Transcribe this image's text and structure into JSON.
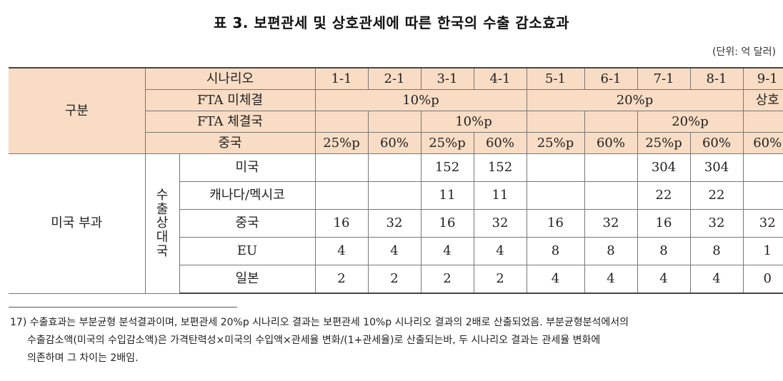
{
  "title": "표 3. 보편관세 및 상호관세에 따른 한국의 수출 감소효과",
  "unit": "(단위: 억 달러)",
  "header": {
    "category": "구분",
    "scenario_label": "시나리오",
    "scenarios": [
      "1-1",
      "2-1",
      "3-1",
      "4-1",
      "5-1",
      "6-1",
      "7-1",
      "8-1",
      "9-1"
    ],
    "fta_non_label": "FTA 미체결",
    "fta_non_values": [
      "10%p",
      "20%p",
      "상호"
    ],
    "fta_label": "FTA 체결국",
    "fta_values": [
      "10%p",
      "20%p"
    ],
    "china_label": "중국",
    "china_values": [
      "25%p",
      "60%",
      "25%p",
      "60%",
      "25%p",
      "60%",
      "25%p",
      "60%",
      "60%"
    ]
  },
  "body": {
    "group_label": "미국 부과",
    "target_label": [
      "수",
      "출",
      "상",
      "대",
      "국"
    ],
    "rows": [
      {
        "name": "미국",
        "values": [
          "",
          "",
          "152",
          "152",
          "",
          "",
          "304",
          "304",
          ""
        ]
      },
      {
        "name": "캐나다/멕시코",
        "values": [
          "",
          "",
          "11",
          "11",
          "",
          "",
          "22",
          "22",
          ""
        ]
      },
      {
        "name": "중국",
        "values": [
          "16",
          "32",
          "16",
          "32",
          "16",
          "32",
          "16",
          "32",
          "32"
        ]
      },
      {
        "name": "EU",
        "values": [
          "4",
          "4",
          "4",
          "4",
          "8",
          "8",
          "8",
          "8",
          "1"
        ]
      },
      {
        "name": "일본",
        "values": [
          "2",
          "2",
          "2",
          "2",
          "4",
          "4",
          "4",
          "4",
          "0"
        ]
      }
    ]
  },
  "footnote": {
    "line1": "17) 수출효과는 부분균형 분석결과이며, 보편관세 20%p 시나리오 결과는 보편관세 10%p 시나리오 결과의 2배로 산출되었음. 부분균형분석에서의",
    "line2": "수출감소액(미국의 수입감소액)은 가격탄력성×미국의 수입액×관세율 변화/(1+관세율)로 산출되는바, 두 시나리오 결과는 관세율 변화에",
    "line3": "의존하며 그 차이는 2배임."
  }
}
